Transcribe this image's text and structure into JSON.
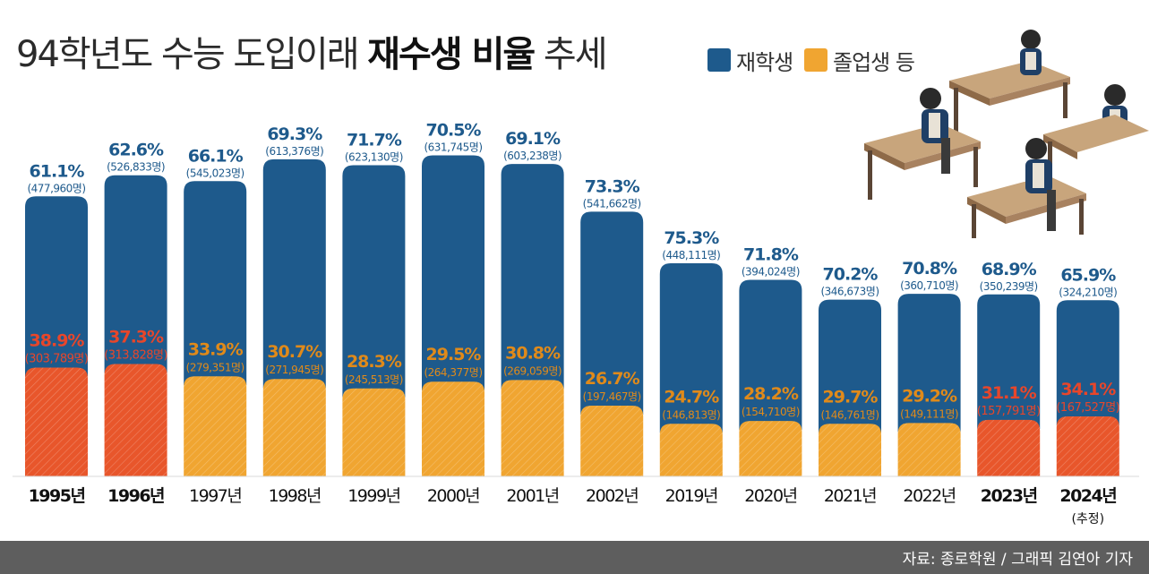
{
  "title": {
    "prefix": "94학년도 수능 도입이래",
    "emphasis": "재수생 비율",
    "suffix": "추세"
  },
  "legend": [
    {
      "name": "재학생",
      "color": "#1e5a8c"
    },
    {
      "name": "졸업생 등",
      "color": "#f0a531"
    }
  ],
  "colors": {
    "enrolled": "#1e5a8c",
    "graduate": "#f0a531",
    "graduate_highlight": "#e8562b",
    "enrolled_label": "#1e5a8c",
    "graduate_label": "#e08a1a",
    "highlight_label": "#e8462a"
  },
  "chart_data": {
    "type": "bar",
    "stacked": true,
    "title": "94학년도 수능 도입이래 재수생 비율 추세",
    "categories": [
      "1995년",
      "1996년",
      "1997년",
      "1998년",
      "1999년",
      "2000년",
      "2001년",
      "2002년",
      "2019년",
      "2020년",
      "2021년",
      "2022년",
      "2023년",
      "2024년"
    ],
    "category_notes": [
      "",
      "",
      "",
      "",
      "",
      "",
      "",
      "",
      "",
      "",
      "",
      "",
      "",
      "(추정)"
    ],
    "bold_categories": [
      0,
      1,
      12,
      13
    ],
    "highlight_categories": [
      0,
      1,
      12,
      13
    ],
    "series": [
      {
        "name": "재학생",
        "pct": [
          "61.1",
          "62.6",
          "66.1",
          "69.3",
          "71.7",
          "70.5",
          "69.1",
          "73.3",
          "75.3",
          "71.8",
          "70.2",
          "70.8",
          "68.9",
          "65.9"
        ],
        "counts": [
          "(477,960명)",
          "(526,833명)",
          "(545,023명)",
          "(613,376명)",
          "(623,130명)",
          "(631,745명)",
          "(603,238명)",
          "(541,662명)",
          "(448,111명)",
          "(394,024명)",
          "(346,673명)",
          "(360,710명)",
          "(350,239명)",
          "(324,210명)"
        ],
        "values": [
          477960,
          526833,
          545023,
          613376,
          623130,
          631745,
          603238,
          541662,
          448111,
          394024,
          346673,
          360710,
          350239,
          324210
        ]
      },
      {
        "name": "졸업생 등",
        "pct": [
          "38.9",
          "37.3",
          "33.9",
          "30.7",
          "28.3",
          "29.5",
          "30.8",
          "26.7",
          "24.7",
          "28.2",
          "29.7",
          "29.2",
          "31.1",
          "34.1"
        ],
        "counts": [
          "(303,789명)",
          "(313,828명)",
          "(279,351명)",
          "(271,945명)",
          "(245,513명)",
          "(264,377명)",
          "(269,059명)",
          "(197,467명)",
          "(146,813명)",
          "(154,710명)",
          "(146,761명)",
          "(149,111명)",
          "(157,791명)",
          "(167,527명)"
        ],
        "values": [
          303789,
          313828,
          279351,
          271945,
          245513,
          264377,
          269059,
          197467,
          146813,
          154710,
          146761,
          149111,
          157791,
          167527
        ]
      }
    ],
    "pct_unit": "%",
    "ylim": [
      0,
      1000000
    ],
    "ylabel": "",
    "xlabel": ""
  },
  "source": "자료: 종로학원 / 그래픽 김연아 기자",
  "illustration": "students-studying-at-desks"
}
